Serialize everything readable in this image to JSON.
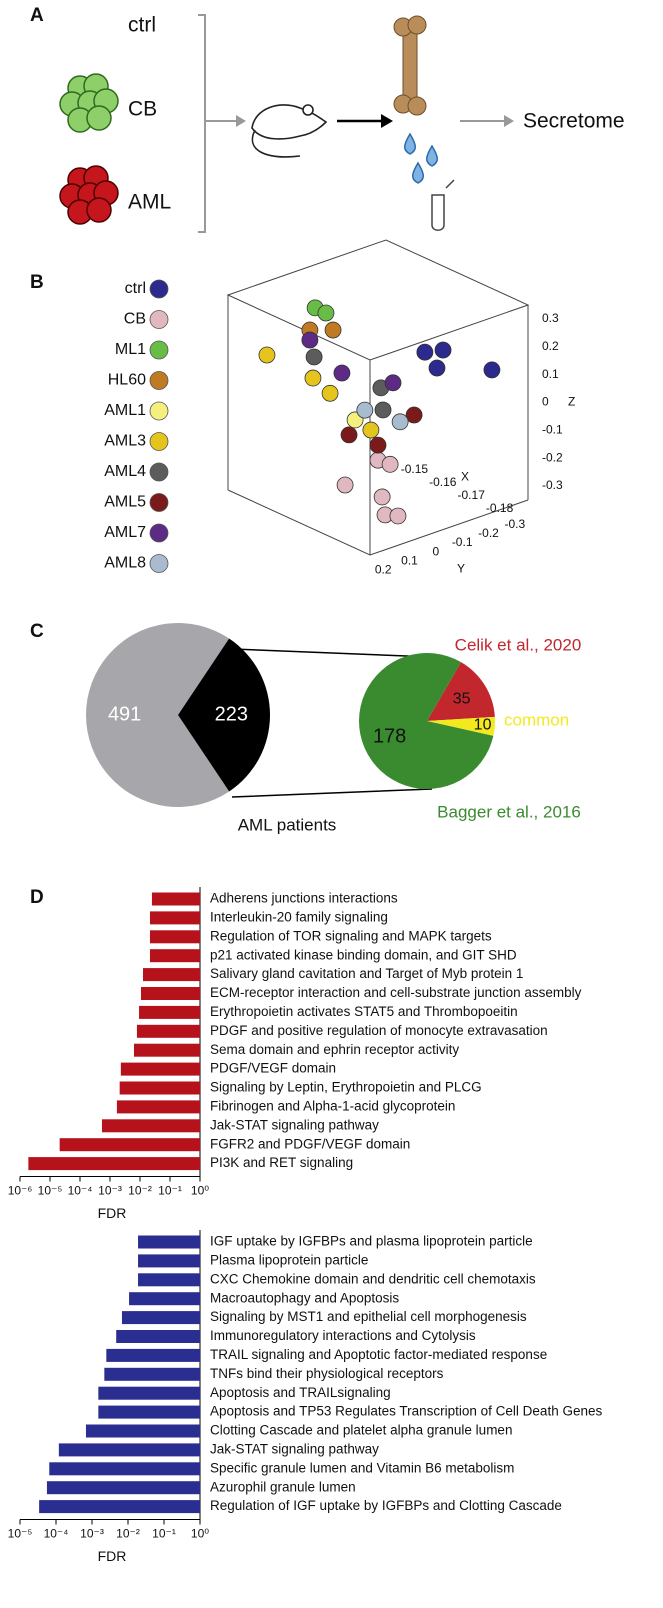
{
  "panel_labels": [
    "A",
    "B",
    "C",
    "D"
  ],
  "diagram": {
    "groups": [
      "ctrl",
      "CB",
      "AML"
    ],
    "output": "Secretome"
  },
  "chart_data": [
    {
      "type": "scatter3d",
      "xlabel": "X",
      "ylabel": "Y",
      "zlabel": "Z",
      "xlim": [
        -0.19,
        -0.14
      ],
      "ylim": [
        0.25,
        -0.35
      ],
      "zlim": [
        -0.35,
        0.35
      ],
      "xticks": [
        -0.15,
        -0.16,
        -0.17,
        -0.18
      ],
      "yticks": [
        0.2,
        0.1,
        0,
        -0.1,
        -0.2,
        -0.3
      ],
      "zticks": [
        0.3,
        0.2,
        0.1,
        0,
        -0.1,
        -0.2,
        -0.3
      ],
      "series": [
        {
          "name": "ctrl",
          "color": "#2c2a8c",
          "x": [
            -0.165,
            -0.165,
            -0.165,
            -0.19
          ],
          "y": [
            -0.228,
            -0.297,
            -0.274,
            -0.213
          ],
          "z": [
            0.104,
            0.089,
            0.032,
            0.162
          ]
        },
        {
          "name": "CB",
          "color": "#e2b8c0",
          "x": [
            -0.165,
            -0.165,
            -0.165,
            -0.18,
            -0.18,
            -0.18
          ],
          "y": [
            -0.05,
            -0.096,
            0.075,
            0.096,
            0.085,
            0.036
          ],
          "z": [
            -0.225,
            -0.255,
            -0.273,
            -0.239,
            -0.307,
            -0.327
          ]
        },
        {
          "name": "ML1",
          "color": "#67bd45",
          "x": [
            -0.145,
            -0.145
          ],
          "y": [
            -0.027,
            -0.068
          ],
          "z": [
            0.236,
            0.204
          ]
        },
        {
          "name": "HL60",
          "color": "#c07a22",
          "x": [
            -0.145,
            -0.145
          ],
          "y": [
            -0.007,
            -0.095
          ],
          "z": [
            0.163,
            0.134
          ]
        },
        {
          "name": "AML1",
          "color": "#f4f07e",
          "x": [
            -0.165
          ],
          "y": [
            0.037
          ],
          "z": [
            -0.052
          ]
        },
        {
          "name": "AML3",
          "color": "#e6c41e",
          "x": [
            -0.145,
            -0.165,
            -0.165,
            -0.165
          ],
          "y": [
            0.156,
            0.197,
            0.132,
            -0.023
          ],
          "z": [
            0.127,
            0.151,
            0.075,
            -0.108
          ]
        },
        {
          "name": "AML4",
          "color": "#5c5c5c",
          "x": [
            -0.145,
            -0.165,
            -0.165
          ],
          "y": [
            -0.023,
            -0.061,
            -0.069
          ],
          "z": [
            0.061,
            0.031,
            -0.051
          ]
        },
        {
          "name": "AML5",
          "color": "#7b1a1a",
          "x": [
            -0.165,
            -0.165,
            -0.165
          ],
          "y": [
            0.06,
            -0.05,
            -0.187
          ],
          "z": [
            -0.098,
            -0.171,
            -0.108
          ]
        },
        {
          "name": "AML7",
          "color": "#5d2a85",
          "x": [
            -0.145,
            -0.165,
            -0.165
          ],
          "y": [
            -0.007,
            0.087,
            -0.107
          ],
          "z": [
            0.127,
            0.133,
            0.034
          ]
        },
        {
          "name": "AML8",
          "color": "#a9bccf",
          "x": [
            -0.165,
            -0.165
          ],
          "y": [
            0.0,
            -0.134
          ],
          "z": [
            -0.029,
            -0.115
          ]
        }
      ]
    },
    {
      "type": "pie",
      "label": "AML patients",
      "values": [
        491,
        223
      ],
      "colors": [
        "#a7a7ab",
        "#000000"
      ]
    },
    {
      "type": "pie",
      "categories": [
        "Celik et al., 2020",
        "common",
        "Bagger et al., 2016"
      ],
      "values": [
        35,
        10,
        178
      ],
      "colors": [
        "#c1272d",
        "#f2ea1e",
        "#3a8b2f"
      ]
    },
    {
      "type": "hbar",
      "log_x": true,
      "xlabel": "FDR",
      "color": "#b5121b",
      "xlim": [
        1e-06,
        1
      ],
      "xticks": [
        {
          "value": 1e-06,
          "label": "10⁻⁶"
        },
        {
          "value": 1e-05,
          "label": "10⁻⁵"
        },
        {
          "value": 0.0001,
          "label": "10⁻⁴"
        },
        {
          "value": 0.001,
          "label": "10⁻³"
        },
        {
          "value": 0.01,
          "label": "10⁻²"
        },
        {
          "value": 0.1,
          "label": "10⁻¹"
        },
        {
          "value": 1,
          "label": "10⁰"
        }
      ],
      "categories": [
        "Adherens junctions interactions",
        "Interleukin-20 family signaling",
        "Regulation of TOR signaling and MAPK targets",
        "p21 activated kinase binding domain, and GIT SHD",
        "Salivary gland cavitation and Target of Myb protein 1",
        "ECM-receptor interaction and cell-substrate junction assembly",
        "Erythropoietin activates STAT5 and Thrombopoeitin",
        "PDGF and positive regulation of monocyte extravasation",
        "Sema domain and ephrin receptor activity",
        "PDGF/VEGF domain",
        "Signaling by Leptin, Erythropoietin and PLCG",
        "Fibrinogen and Alpha-1-acid glycoprotein",
        "Jak-STAT signaling pathway",
        "FGFR2 and PDGF/VEGF domain",
        "PI3K and RET signaling"
      ],
      "values": [
        0.025,
        0.0215,
        0.0215,
        0.0215,
        0.0126,
        0.0108,
        0.0093,
        0.0079,
        0.0063,
        0.0023,
        0.0021,
        0.0017,
        0.00054,
        2.1e-05,
        1.9e-06
      ]
    },
    {
      "type": "hbar",
      "log_x": true,
      "xlabel": "FDR",
      "color": "#2b2e91",
      "xlim": [
        1e-05,
        1
      ],
      "xticks": [
        {
          "value": 1e-05,
          "label": "10⁻⁵"
        },
        {
          "value": 0.0001,
          "label": "10⁻⁴"
        },
        {
          "value": 0.001,
          "label": "10⁻³"
        },
        {
          "value": 0.01,
          "label": "10⁻²"
        },
        {
          "value": 0.1,
          "label": "10⁻¹"
        },
        {
          "value": 1,
          "label": "10⁰"
        }
      ],
      "categories": [
        "IGF uptake by IGFBPs and plasma lipoprotein particle",
        "Plasma lipoprotein particle",
        "CXC Chemokine domain and dendritic cell chemotaxis",
        "Macroautophagy and Apoptosis",
        "Signaling by MST1 and epithelial cell morphogenesis",
        "Immunoregulatory interactions and Cytolysis",
        "TRAIL signaling and Apoptotic factor-mediated response",
        "TNFs bind their physiological receptors",
        "Apoptosis and TRAILsignaling",
        "Apoptosis and TP53 Regulates Transcription of Cell Death Genes",
        "Clotting Cascade and platelet alpha granule lumen",
        "Jak-STAT signaling pathway",
        "Specific granule lumen and Vitamin B6 metabolism",
        "Azurophil granule lumen",
        "Regulation of IGF uptake by IGFBPs and Clotting Cascade"
      ],
      "values": [
        0.019,
        0.019,
        0.019,
        0.0107,
        0.0068,
        0.0047,
        0.0025,
        0.0022,
        0.0015,
        0.0015,
        0.00068,
        0.00012,
        6.5e-05,
        5.6e-05,
        3.4e-05
      ]
    }
  ]
}
